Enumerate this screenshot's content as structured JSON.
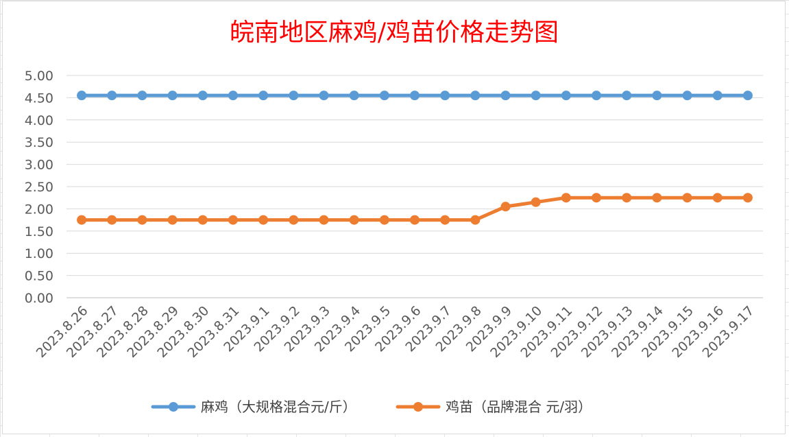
{
  "chart_data": {
    "type": "line",
    "title": "皖南地区麻鸡/鸡苗价格走势图",
    "xlabel": "",
    "ylabel": "",
    "ylim": [
      0,
      5
    ],
    "y_ticks": [
      "0.00",
      "0.50",
      "1.00",
      "1.50",
      "2.00",
      "2.50",
      "3.00",
      "3.50",
      "4.00",
      "4.50",
      "5.00"
    ],
    "categories": [
      "2023.8.26",
      "2023.8.27",
      "2023.8.28",
      "2023.8.29",
      "2023.8.30",
      "2023.8.31",
      "2023.9.1",
      "2023.9.2",
      "2023.9.3",
      "2023.9.4",
      "2023.9.5",
      "2023.9.6",
      "2023.9.7",
      "2023.9.8",
      "2023.9.9",
      "2023.9.10",
      "2023.9.11",
      "2023.9.12",
      "2023.9.13",
      "2023.9.14",
      "2023.9.15",
      "2023.9.16",
      "2023.9.17"
    ],
    "series": [
      {
        "name": "麻鸡（大规格混合元/斤）",
        "color": "#5b9bd5",
        "values": [
          4.55,
          4.55,
          4.55,
          4.55,
          4.55,
          4.55,
          4.55,
          4.55,
          4.55,
          4.55,
          4.55,
          4.55,
          4.55,
          4.55,
          4.55,
          4.55,
          4.55,
          4.55,
          4.55,
          4.55,
          4.55,
          4.55,
          4.55
        ]
      },
      {
        "name": "鸡苗（品牌混合 元/羽）",
        "color": "#ed7d31",
        "values": [
          1.75,
          1.75,
          1.75,
          1.75,
          1.75,
          1.75,
          1.75,
          1.75,
          1.75,
          1.75,
          1.75,
          1.75,
          1.75,
          1.75,
          2.05,
          2.15,
          2.25,
          2.25,
          2.25,
          2.25,
          2.25,
          2.25,
          2.25
        ]
      }
    ],
    "grid": true,
    "legend_position": "bottom",
    "title_color": "#ff0000"
  }
}
